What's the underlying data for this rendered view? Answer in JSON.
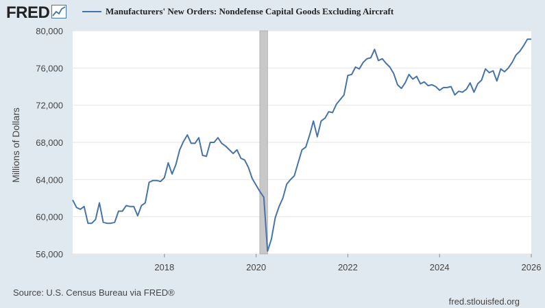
{
  "header": {
    "logo_text": "FRED",
    "series_label": "Manufacturers' New Orders: Nondefense Capital Goods Excluding Aircraft"
  },
  "footer": {
    "source": "Source: U.S. Census Bureau via FRED®",
    "site": "fred.stlouisfed.org"
  },
  "colors": {
    "background": "#e1e9f0",
    "plot_background": "#ffffff",
    "line": "#4573a7",
    "grid": "#e6e6e6",
    "recession": "#c8c8c8"
  },
  "chart_data": {
    "type": "line",
    "title": "",
    "xlabel": "",
    "ylabel": "Millions of Dollars",
    "xlim": [
      2016.0,
      2026.0
    ],
    "ylim": [
      56000,
      80000
    ],
    "x_ticks": [
      2018,
      2020,
      2022,
      2024,
      2026
    ],
    "x_tick_labels": [
      "2018",
      "2020",
      "2022",
      "2024",
      "2026"
    ],
    "y_ticks": [
      56000,
      60000,
      64000,
      68000,
      72000,
      76000,
      80000
    ],
    "y_tick_labels": [
      "56,000",
      "60,000",
      "64,000",
      "68,000",
      "72,000",
      "76,000",
      "80,000"
    ],
    "grid": true,
    "legend": "top",
    "recession": [
      2020.08,
      2020.25
    ],
    "series": [
      {
        "name": "Manufacturers' New Orders: Nondefense Capital Goods Excluding Aircraft",
        "x": [
          2016.0,
          2016.083,
          2016.167,
          2016.25,
          2016.333,
          2016.417,
          2016.5,
          2016.583,
          2016.667,
          2016.75,
          2016.833,
          2016.917,
          2017.0,
          2017.083,
          2017.167,
          2017.25,
          2017.333,
          2017.417,
          2017.5,
          2017.583,
          2017.667,
          2017.75,
          2017.833,
          2017.917,
          2018.0,
          2018.083,
          2018.167,
          2018.25,
          2018.333,
          2018.417,
          2018.5,
          2018.583,
          2018.667,
          2018.75,
          2018.833,
          2018.917,
          2019.0,
          2019.083,
          2019.167,
          2019.25,
          2019.333,
          2019.417,
          2019.5,
          2019.583,
          2019.667,
          2019.75,
          2019.833,
          2019.917,
          2020.0,
          2020.083,
          2020.167,
          2020.25,
          2020.333,
          2020.417,
          2020.5,
          2020.583,
          2020.667,
          2020.75,
          2020.833,
          2020.917,
          2021.0,
          2021.083,
          2021.167,
          2021.25,
          2021.333,
          2021.417,
          2021.5,
          2021.583,
          2021.667,
          2021.75,
          2021.833,
          2021.917,
          2022.0,
          2022.083,
          2022.167,
          2022.25,
          2022.333,
          2022.417,
          2022.5,
          2022.583,
          2022.667,
          2022.75,
          2022.833,
          2022.917,
          2023.0,
          2023.083,
          2023.167,
          2023.25,
          2023.333,
          2023.417,
          2023.5,
          2023.583,
          2023.667,
          2023.75,
          2023.833,
          2023.917,
          2024.0,
          2024.083,
          2024.167,
          2024.25,
          2024.333,
          2024.417,
          2024.5,
          2024.583,
          2024.667,
          2024.75,
          2024.833,
          2024.917,
          2025.0,
          2025.083,
          2025.167,
          2025.25,
          2025.333,
          2025.417,
          2025.5,
          2025.583,
          2025.667,
          2025.75,
          2025.833,
          2025.917,
          2026.0
        ],
        "values": [
          61800,
          61000,
          60800,
          61100,
          59300,
          59300,
          59700,
          61500,
          59400,
          59300,
          59300,
          59400,
          60600,
          60600,
          61200,
          61100,
          61100,
          60100,
          61200,
          61500,
          63700,
          63900,
          63900,
          63800,
          64200,
          65800,
          64600,
          65600,
          67200,
          68100,
          68800,
          67900,
          67900,
          68500,
          66600,
          66500,
          68000,
          68000,
          68500,
          67900,
          67600,
          67200,
          66800,
          67200,
          66300,
          66100,
          65300,
          64100,
          63400,
          62700,
          62100,
          56300,
          57600,
          59900,
          61100,
          62000,
          63500,
          64000,
          64400,
          65800,
          67200,
          67500,
          68800,
          70300,
          68600,
          70300,
          70600,
          71300,
          71200,
          72100,
          72600,
          73100,
          75200,
          75300,
          76100,
          75900,
          76600,
          77000,
          77100,
          78000,
          76800,
          77000,
          76500,
          76100,
          75400,
          74200,
          73800,
          74400,
          75300,
          74800,
          75100,
          74300,
          74500,
          74100,
          74200,
          74000,
          73600,
          73900,
          73900,
          74000,
          73100,
          73500,
          73400,
          73700,
          74400,
          73400,
          74300,
          74700,
          75900,
          75500,
          75700,
          74600,
          75900,
          75600,
          76000,
          76600,
          77400,
          77800,
          78400,
          79100,
          79100
        ]
      }
    ]
  }
}
